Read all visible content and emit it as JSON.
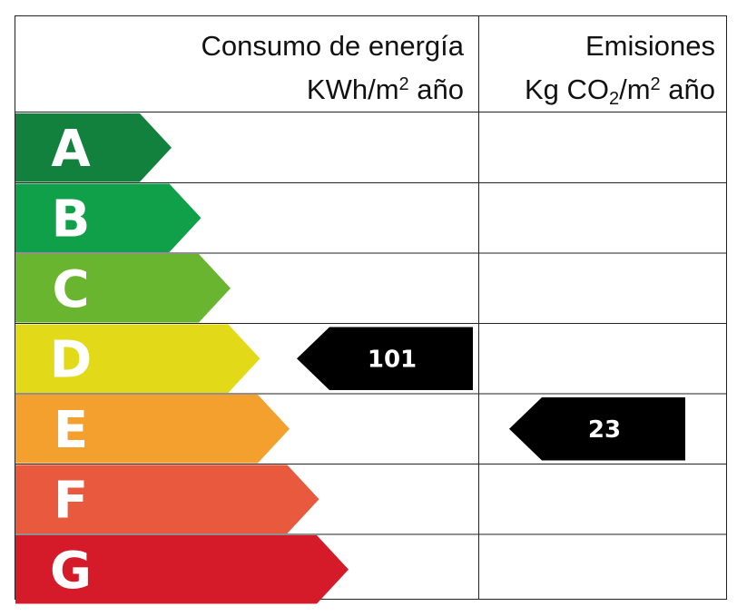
{
  "header": {
    "consumo_line1": "Consumo de energía",
    "consumo_unit_pre": "KWh/m",
    "consumo_unit_sup": "2",
    "consumo_unit_post": " año",
    "emisiones_line1": "Emisiones",
    "emisiones_unit_pre": "Kg CO",
    "emisiones_unit_sub": "2",
    "emisiones_unit_mid": "/m",
    "emisiones_unit_sup": "2",
    "emisiones_unit_post": " año"
  },
  "chart_data": {
    "type": "table",
    "categories": [
      "A",
      "B",
      "C",
      "D",
      "E",
      "F",
      "G"
    ],
    "band_colors": [
      "#12813d",
      "#11a04a",
      "#69b52f",
      "#e2da19",
      "#f3a02e",
      "#e9593e",
      "#d51b2a"
    ],
    "series": [
      {
        "name": "Consumo de energía",
        "category": "D",
        "value": "101"
      },
      {
        "name": "Emisiones",
        "category": "E",
        "value": "23"
      }
    ],
    "marker_color": "#000000"
  }
}
